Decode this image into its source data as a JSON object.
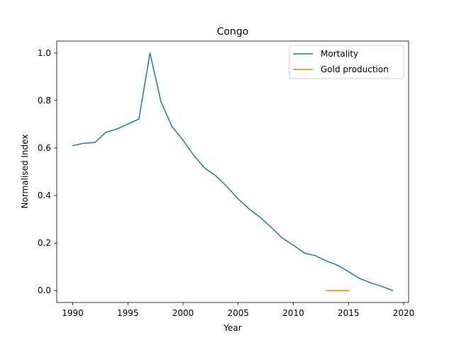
{
  "chart_data": {
    "type": "line",
    "title": "Congo",
    "xlabel": "Year",
    "ylabel": "Normalised Index",
    "xlim": [
      1988.55,
      2020.45
    ],
    "ylim": [
      -0.05,
      1.05
    ],
    "xticks": [
      1990,
      1995,
      2000,
      2005,
      2010,
      2015,
      2020
    ],
    "yticks": [
      0.0,
      0.2,
      0.4,
      0.6,
      0.8,
      1.0
    ],
    "xtick_labels": [
      "1990",
      "1995",
      "2000",
      "2005",
      "2010",
      "2015",
      "2020"
    ],
    "ytick_labels": [
      "0.0",
      "0.2",
      "0.4",
      "0.6",
      "0.8",
      "1.0"
    ],
    "grid": false,
    "legend_position": "top-right",
    "series": [
      {
        "name": "Mortality",
        "color": "#1f77b4",
        "x": [
          1990,
          1991,
          1992,
          1993,
          1994,
          1995,
          1996,
          1997,
          1998,
          1999,
          2000,
          2001,
          2002,
          2003,
          2004,
          2005,
          2006,
          2007,
          2008,
          2009,
          2010,
          2011,
          2012,
          2013,
          2014,
          2015,
          2016,
          2017,
          2018,
          2019
        ],
        "y": [
          0.61,
          0.62,
          0.623,
          0.666,
          0.68,
          0.701,
          0.722,
          1.0,
          0.795,
          0.69,
          0.633,
          0.567,
          0.514,
          0.482,
          0.437,
          0.386,
          0.343,
          0.308,
          0.266,
          0.221,
          0.191,
          0.158,
          0.147,
          0.125,
          0.107,
          0.08,
          0.051,
          0.033,
          0.018,
          0.0
        ]
      },
      {
        "name": "Gold production",
        "color": "#ff7f0e",
        "x": [
          2013,
          2014,
          2015
        ],
        "y": [
          0.0,
          0.0,
          0.0
        ]
      }
    ]
  }
}
